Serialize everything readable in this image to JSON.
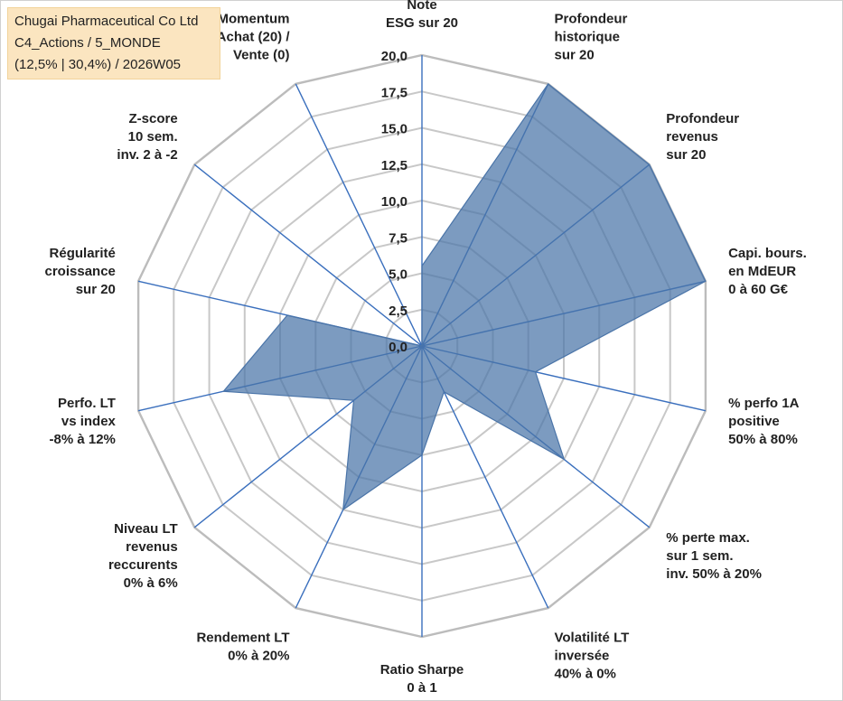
{
  "title_lines": [
    "Chugai Pharmaceutical Co Ltd",
    "C4_Actions / 5_MONDE",
    "(12,5% | 30,4%) / 2026W05"
  ],
  "chart_data": {
    "type": "radar",
    "title": "Chugai Pharmaceutical Co Ltd",
    "axes": [
      "Note\nESG sur 20",
      "Profondeur\nhistorique\nsur 20",
      "Profondeur\nrevenus\nsur 20",
      "Capi. bours.\nen MdEUR\n0 à 60 G€",
      "% perfo 1A\npositive\n50% à 80%",
      "% perte max.\nsur 1 sem.\ninv. 50% à 20%",
      "Volatilité LT\ninversée\n40% à 0%",
      "Ratio Sharpe\n0 à 1",
      "Rendement LT\n0% à 20%",
      "Niveau LT\nrevenus\nreccurents\n0% à 6%",
      "Perfo. LT\nvs index\n-8% à 12%",
      "Régularité\ncroissance\nsur 20",
      "Z-score\n10 sem.\ninv. 2 à -2",
      "Momentum\nAchat (20) /\nVente (0)"
    ],
    "series": [
      {
        "values": [
          5.5,
          20.0,
          20.0,
          20.0,
          8.0,
          12.5,
          3.5,
          7.5,
          12.5,
          6.0,
          14.0,
          9.5,
          0.0,
          0.0
        ]
      }
    ],
    "rmin": 0,
    "rmax": 20,
    "ticks": [
      "0,0",
      "2,5",
      "5,0",
      "7,5",
      "10,0",
      "12,5",
      "15,0",
      "17,5",
      "20,0"
    ],
    "grid": true,
    "legend": "none",
    "colors": {
      "fill": "#4a74a8",
      "fill_opacity": 0.72,
      "series_line": "#4a74a8",
      "spoke": "#3a6fbd",
      "grid": "#c8c8c8",
      "outer_grid": "#bcbcbc",
      "text": "#222222",
      "title_bg": "#fbe5c0"
    }
  }
}
